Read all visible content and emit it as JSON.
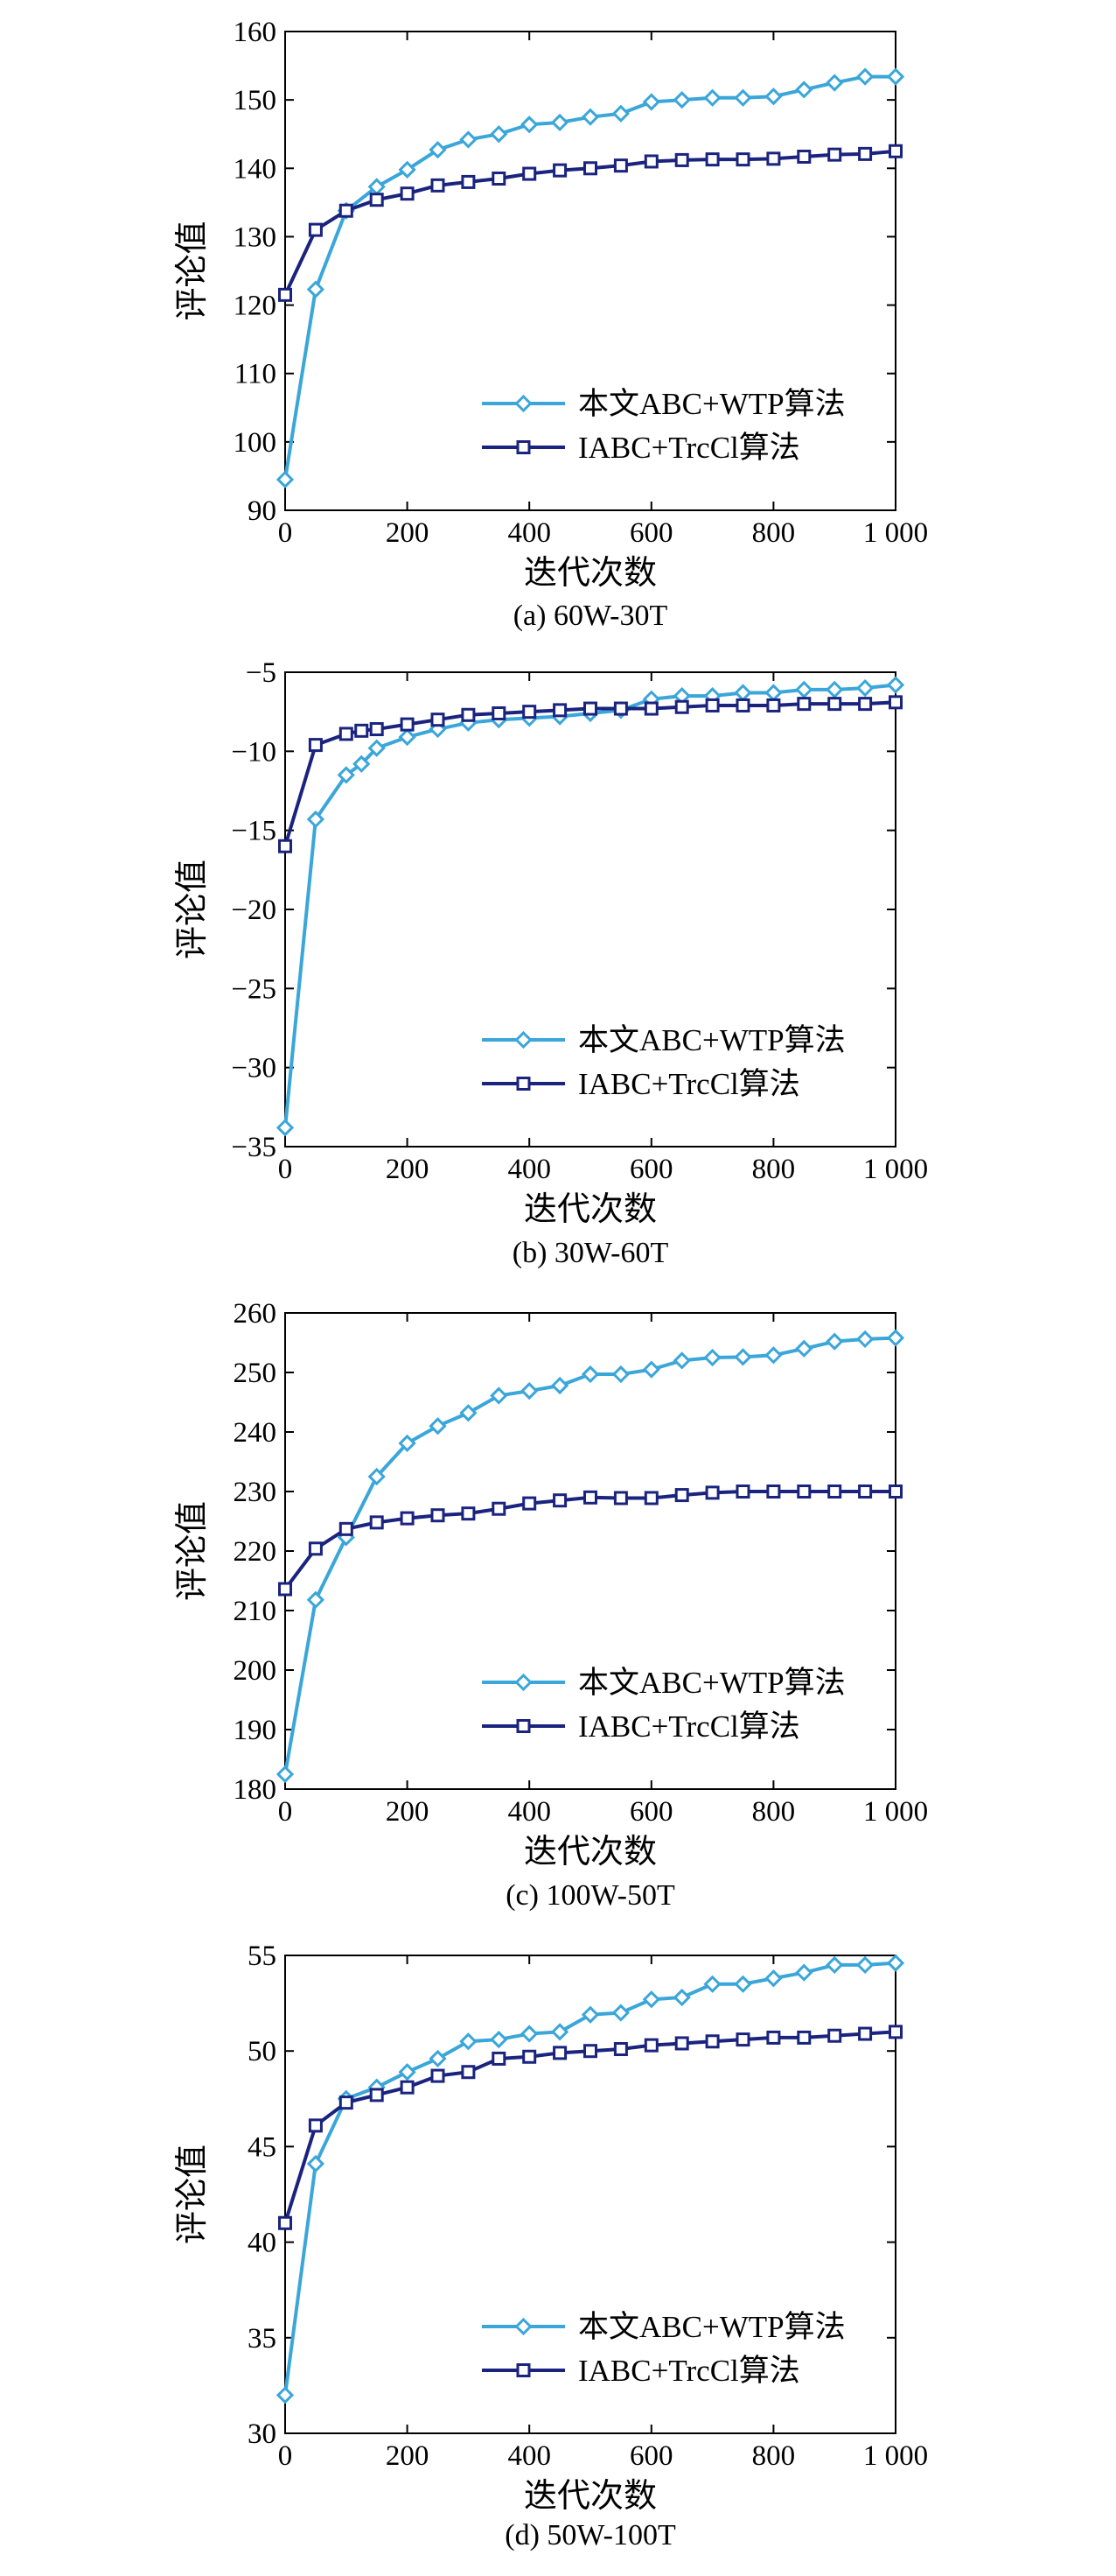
{
  "colors": {
    "series_a": "#3aa6d9",
    "series_b": "#1a237e",
    "axis": "#000000",
    "background": "#ffffff"
  },
  "chart_data": [
    {
      "type": "line",
      "caption": "(a) 60W-30T",
      "xlabel": "迭代次数",
      "ylabel": "评论值",
      "xlim": [
        0,
        1000
      ],
      "ylim": [
        90,
        160
      ],
      "xticks": [
        0,
        200,
        400,
        600,
        800,
        1000
      ],
      "xtick_labels": [
        "0",
        "200",
        "400",
        "600",
        "800",
        "1 000"
      ],
      "yticks": [
        90,
        100,
        110,
        120,
        130,
        140,
        150,
        160
      ],
      "ytick_labels": [
        "90",
        "100",
        "110",
        "120",
        "130",
        "140",
        "150",
        "160"
      ],
      "grid": false,
      "legend_position": "lower-right",
      "x": [
        0,
        50,
        100,
        150,
        200,
        250,
        300,
        350,
        400,
        450,
        500,
        550,
        600,
        650,
        700,
        750,
        800,
        850,
        900,
        950,
        1000
      ],
      "series": [
        {
          "name": "本文ABC+WTP算法",
          "marker": "diamond",
          "color": "#3aa6d9",
          "values": [
            94.5,
            122.3,
            133.8,
            137.3,
            139.8,
            142.7,
            144.2,
            145,
            146.4,
            146.7,
            147.5,
            148,
            149.7,
            150,
            150.3,
            150.3,
            150.5,
            151.5,
            152.5,
            153.4,
            153.4
          ]
        },
        {
          "name": "IABC+TrcCl算法",
          "marker": "square",
          "color": "#1a237e",
          "values": [
            121.5,
            131,
            133.8,
            135.4,
            136.3,
            137.5,
            138,
            138.5,
            139.2,
            139.7,
            140,
            140.4,
            141,
            141.2,
            141.3,
            141.3,
            141.4,
            141.7,
            142,
            142.1,
            142.5
          ]
        }
      ]
    },
    {
      "type": "line",
      "caption": "(b) 30W-60T",
      "xlabel": "迭代次数",
      "ylabel": "评论值",
      "xlim": [
        0,
        1000
      ],
      "ylim": [
        -35,
        -5
      ],
      "xticks": [
        0,
        200,
        400,
        600,
        800,
        1000
      ],
      "xtick_labels": [
        "0",
        "200",
        "400",
        "600",
        "800",
        "1 000"
      ],
      "yticks": [
        -35,
        -30,
        -25,
        -20,
        -15,
        -10,
        -5
      ],
      "ytick_labels": [
        "−35",
        "−30",
        "−25",
        "−20",
        "−15",
        "−10",
        "−5"
      ],
      "grid": false,
      "legend_position": "lower-right",
      "x": [
        0,
        50,
        100,
        125,
        150,
        200,
        250,
        300,
        350,
        400,
        450,
        500,
        550,
        600,
        650,
        700,
        750,
        800,
        850,
        900,
        950,
        1000
      ],
      "series": [
        {
          "name": "本文ABC+WTP算法",
          "marker": "diamond",
          "color": "#3aa6d9",
          "values": [
            -33.8,
            -14.3,
            -11.5,
            -10.8,
            -9.8,
            -9.1,
            -8.6,
            -8.2,
            -8,
            -7.9,
            -7.8,
            -7.6,
            -7.4,
            -6.7,
            -6.5,
            -6.5,
            -6.3,
            -6.3,
            -6.1,
            -6.1,
            -6,
            -5.8
          ]
        },
        {
          "name": "IABC+TrcCl算法",
          "marker": "square",
          "color": "#1a237e",
          "values": [
            -16,
            -9.6,
            -8.9,
            -8.7,
            -8.6,
            -8.3,
            -8,
            -7.7,
            -7.6,
            -7.5,
            -7.4,
            -7.3,
            -7.3,
            -7.3,
            -7.2,
            -7.1,
            -7.1,
            -7.1,
            -7,
            -7,
            -7,
            -6.9
          ]
        }
      ]
    },
    {
      "type": "line",
      "caption": "(c) 100W-50T",
      "xlabel": "迭代次数",
      "ylabel": "评论值",
      "xlim": [
        0,
        1000
      ],
      "ylim": [
        180,
        260
      ],
      "xticks": [
        0,
        200,
        400,
        600,
        800,
        1000
      ],
      "xtick_labels": [
        "0",
        "200",
        "400",
        "600",
        "800",
        "1 000"
      ],
      "yticks": [
        180,
        190,
        200,
        210,
        220,
        230,
        240,
        250,
        260
      ],
      "ytick_labels": [
        "180",
        "190",
        "200",
        "210",
        "220",
        "230",
        "240",
        "250",
        "260"
      ],
      "grid": false,
      "legend_position": "lower-right",
      "x": [
        0,
        50,
        100,
        150,
        200,
        250,
        300,
        350,
        400,
        450,
        500,
        550,
        600,
        650,
        700,
        750,
        800,
        850,
        900,
        950,
        1000
      ],
      "series": [
        {
          "name": "本文ABC+WTP算法",
          "marker": "diamond",
          "color": "#3aa6d9",
          "values": [
            182.5,
            211.8,
            222.3,
            232.5,
            238.1,
            241,
            243.2,
            246.1,
            246.9,
            247.8,
            249.7,
            249.7,
            250.5,
            252,
            252.5,
            252.6,
            252.9,
            254,
            255.2,
            255.6,
            255.8
          ]
        },
        {
          "name": "IABC+TrcCl算法",
          "marker": "square",
          "color": "#1a237e",
          "values": [
            213.6,
            220.4,
            223.7,
            224.8,
            225.5,
            226,
            226.3,
            227.1,
            228,
            228.5,
            229,
            228.9,
            228.9,
            229.4,
            229.8,
            230,
            230,
            230,
            230,
            230,
            230
          ]
        }
      ]
    },
    {
      "type": "line",
      "caption": "(d) 50W-100T",
      "xlabel": "迭代次数",
      "ylabel": "评论值",
      "xlim": [
        0,
        1000
      ],
      "ylim": [
        30,
        55
      ],
      "xticks": [
        0,
        200,
        400,
        600,
        800,
        1000
      ],
      "xtick_labels": [
        "0",
        "200",
        "400",
        "600",
        "800",
        "1 000"
      ],
      "yticks": [
        30,
        35,
        40,
        45,
        50,
        55
      ],
      "ytick_labels": [
        "30",
        "35",
        "40",
        "45",
        "50",
        "55"
      ],
      "grid": false,
      "legend_position": "lower-right",
      "x": [
        0,
        50,
        100,
        150,
        200,
        250,
        300,
        350,
        400,
        450,
        500,
        550,
        600,
        650,
        700,
        750,
        800,
        850,
        900,
        950,
        1000
      ],
      "series": [
        {
          "name": "本文ABC+WTP算法",
          "marker": "diamond",
          "color": "#3aa6d9",
          "values": [
            32,
            44.1,
            47.5,
            48.1,
            48.9,
            49.6,
            50.5,
            50.6,
            50.9,
            51,
            51.9,
            52,
            52.7,
            52.8,
            53.5,
            53.5,
            53.8,
            54.1,
            54.5,
            54.5,
            54.6
          ]
        },
        {
          "name": "IABC+TrcCl算法",
          "marker": "square",
          "color": "#1a237e",
          "values": [
            41,
            46.1,
            47.3,
            47.7,
            48.1,
            48.7,
            48.9,
            49.6,
            49.7,
            49.9,
            50,
            50.1,
            50.3,
            50.4,
            50.5,
            50.6,
            50.7,
            50.7,
            50.8,
            50.9,
            51
          ]
        }
      ]
    }
  ]
}
